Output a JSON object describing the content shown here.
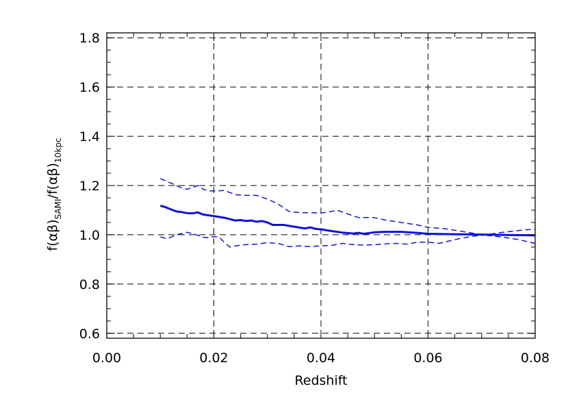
{
  "chart_data": {
    "type": "line",
    "xlabel": "Redshift",
    "ylabel": {
      "main1": "f(αβ)",
      "sub1": "SAMI",
      "slash": "/",
      "main2": "f(αβ)",
      "sub2": "10kpc"
    },
    "xlim": [
      0.0,
      0.08
    ],
    "ylim": [
      0.58,
      1.82
    ],
    "x_ticks": [
      0.0,
      0.02,
      0.04,
      0.06,
      0.08
    ],
    "x_tick_labels": [
      "0.00",
      "0.02",
      "0.04",
      "0.06",
      "0.08"
    ],
    "y_ticks": [
      0.6,
      0.8,
      1.0,
      1.2,
      1.4,
      1.6,
      1.8
    ],
    "y_tick_labels": [
      "0.6",
      "0.8",
      "1.0",
      "1.2",
      "1.4",
      "1.6",
      "1.8"
    ],
    "grid": true,
    "line_color": "#1010dd",
    "series": [
      {
        "style": "solid",
        "x": [
          0.01,
          0.011,
          0.012,
          0.013,
          0.014,
          0.015,
          0.016,
          0.017,
          0.018,
          0.019,
          0.02,
          0.022,
          0.024,
          0.025,
          0.026,
          0.027,
          0.028,
          0.029,
          0.03,
          0.031,
          0.033,
          0.035,
          0.037,
          0.038,
          0.039,
          0.04,
          0.042,
          0.044,
          0.046,
          0.047,
          0.048,
          0.05,
          0.052,
          0.055,
          0.058,
          0.06,
          0.063,
          0.066,
          0.07,
          0.075,
          0.08
        ],
        "y": [
          1.118,
          1.112,
          1.103,
          1.095,
          1.092,
          1.088,
          1.087,
          1.091,
          1.082,
          1.079,
          1.076,
          1.069,
          1.058,
          1.06,
          1.056,
          1.058,
          1.053,
          1.056,
          1.05,
          1.04,
          1.04,
          1.033,
          1.026,
          1.03,
          1.024,
          1.022,
          1.015,
          1.009,
          1.005,
          1.008,
          1.004,
          1.01,
          1.012,
          1.012,
          1.008,
          1.004,
          1.003,
          1.002,
          1.001,
          0.999,
          0.998
        ]
      },
      {
        "style": "dashed",
        "x": [
          0.01,
          0.012,
          0.014,
          0.015,
          0.016,
          0.017,
          0.018,
          0.019,
          0.02,
          0.022,
          0.024,
          0.026,
          0.028,
          0.03,
          0.032,
          0.034,
          0.036,
          0.038,
          0.04,
          0.042,
          0.043,
          0.045,
          0.047,
          0.05,
          0.052,
          0.055,
          0.058,
          0.06,
          0.063,
          0.066,
          0.07,
          0.074,
          0.077,
          0.08
        ],
        "y": [
          1.228,
          1.21,
          1.19,
          1.185,
          1.192,
          1.2,
          1.185,
          1.178,
          1.178,
          1.18,
          1.163,
          1.16,
          1.16,
          1.145,
          1.125,
          1.095,
          1.09,
          1.09,
          1.088,
          1.095,
          1.1,
          1.085,
          1.07,
          1.07,
          1.06,
          1.05,
          1.04,
          1.03,
          1.025,
          1.015,
          1.0,
          0.99,
          0.98,
          0.965
        ]
      },
      {
        "style": "dashed",
        "x": [
          0.01,
          0.011,
          0.012,
          0.013,
          0.014,
          0.015,
          0.016,
          0.017,
          0.018,
          0.019,
          0.02,
          0.021,
          0.022,
          0.023,
          0.024,
          0.026,
          0.028,
          0.03,
          0.032,
          0.034,
          0.036,
          0.038,
          0.04,
          0.042,
          0.044,
          0.046,
          0.048,
          0.05,
          0.052,
          0.054,
          0.056,
          0.058,
          0.06,
          0.062,
          0.064,
          0.066,
          0.068,
          0.07,
          0.074,
          0.078,
          0.08
        ],
        "y": [
          0.992,
          0.985,
          0.99,
          1.0,
          1.005,
          1.01,
          1.005,
          0.998,
          0.99,
          0.988,
          0.993,
          0.99,
          0.968,
          0.95,
          0.955,
          0.96,
          0.962,
          0.968,
          0.965,
          0.952,
          0.955,
          0.952,
          0.955,
          0.957,
          0.965,
          0.96,
          0.958,
          0.96,
          0.963,
          0.965,
          0.962,
          0.97,
          0.97,
          0.965,
          0.975,
          0.985,
          0.993,
          0.998,
          1.01,
          1.02,
          1.022
        ]
      }
    ]
  }
}
